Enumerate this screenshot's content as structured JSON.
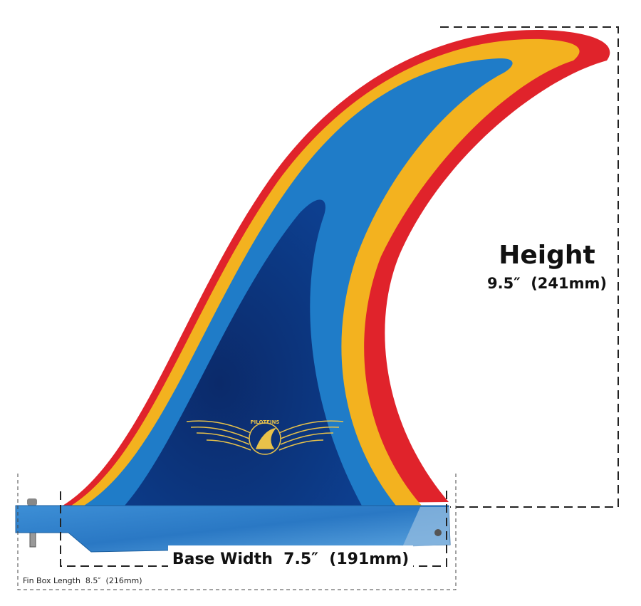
{
  "annotations": {
    "height": {
      "label": "Height",
      "measurement": "9.5″  (241mm)"
    },
    "base_width": "Base Width  7.5″  (191mm)",
    "fin_box_length": "Fin Box Length  8.5″  (216mm)"
  },
  "logo": "PILOTFINS"
}
